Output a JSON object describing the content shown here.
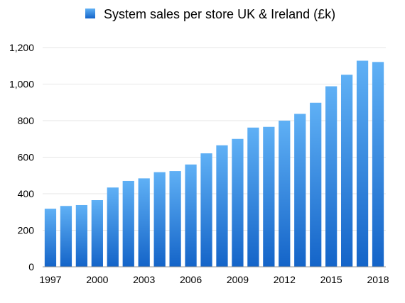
{
  "chart_data": {
    "type": "bar",
    "legend": {
      "label": "System sales per store UK & Ireland (£k)",
      "placement": "top-center"
    },
    "series": [
      {
        "name": "System sales per store UK & Ireland (£k)",
        "color": "#2f86e0",
        "values": [
          318,
          333,
          338,
          365,
          434,
          470,
          484,
          518,
          524,
          560,
          621,
          665,
          700,
          762,
          766,
          800,
          837,
          898,
          988,
          1051,
          1128,
          1121
        ]
      }
    ],
    "categories": [
      1997,
      1998,
      1999,
      2000,
      2001,
      2002,
      2003,
      2004,
      2005,
      2006,
      2007,
      2008,
      2009,
      2010,
      2011,
      2012,
      2013,
      2014,
      2015,
      2016,
      2017,
      2018
    ],
    "x_tick_labels": [
      "1997",
      "2000",
      "2003",
      "2006",
      "2009",
      "2012",
      "2015",
      "2018"
    ],
    "y_tick_labels": [
      "0",
      "200",
      "400",
      "600",
      "800",
      "1,000",
      "1,200"
    ],
    "ylim": [
      0,
      1200
    ],
    "grid": true,
    "colors": {
      "bar_top": "#5fb0f5",
      "bar_bottom": "#1464c8",
      "grid": "#e6e6e6"
    }
  }
}
